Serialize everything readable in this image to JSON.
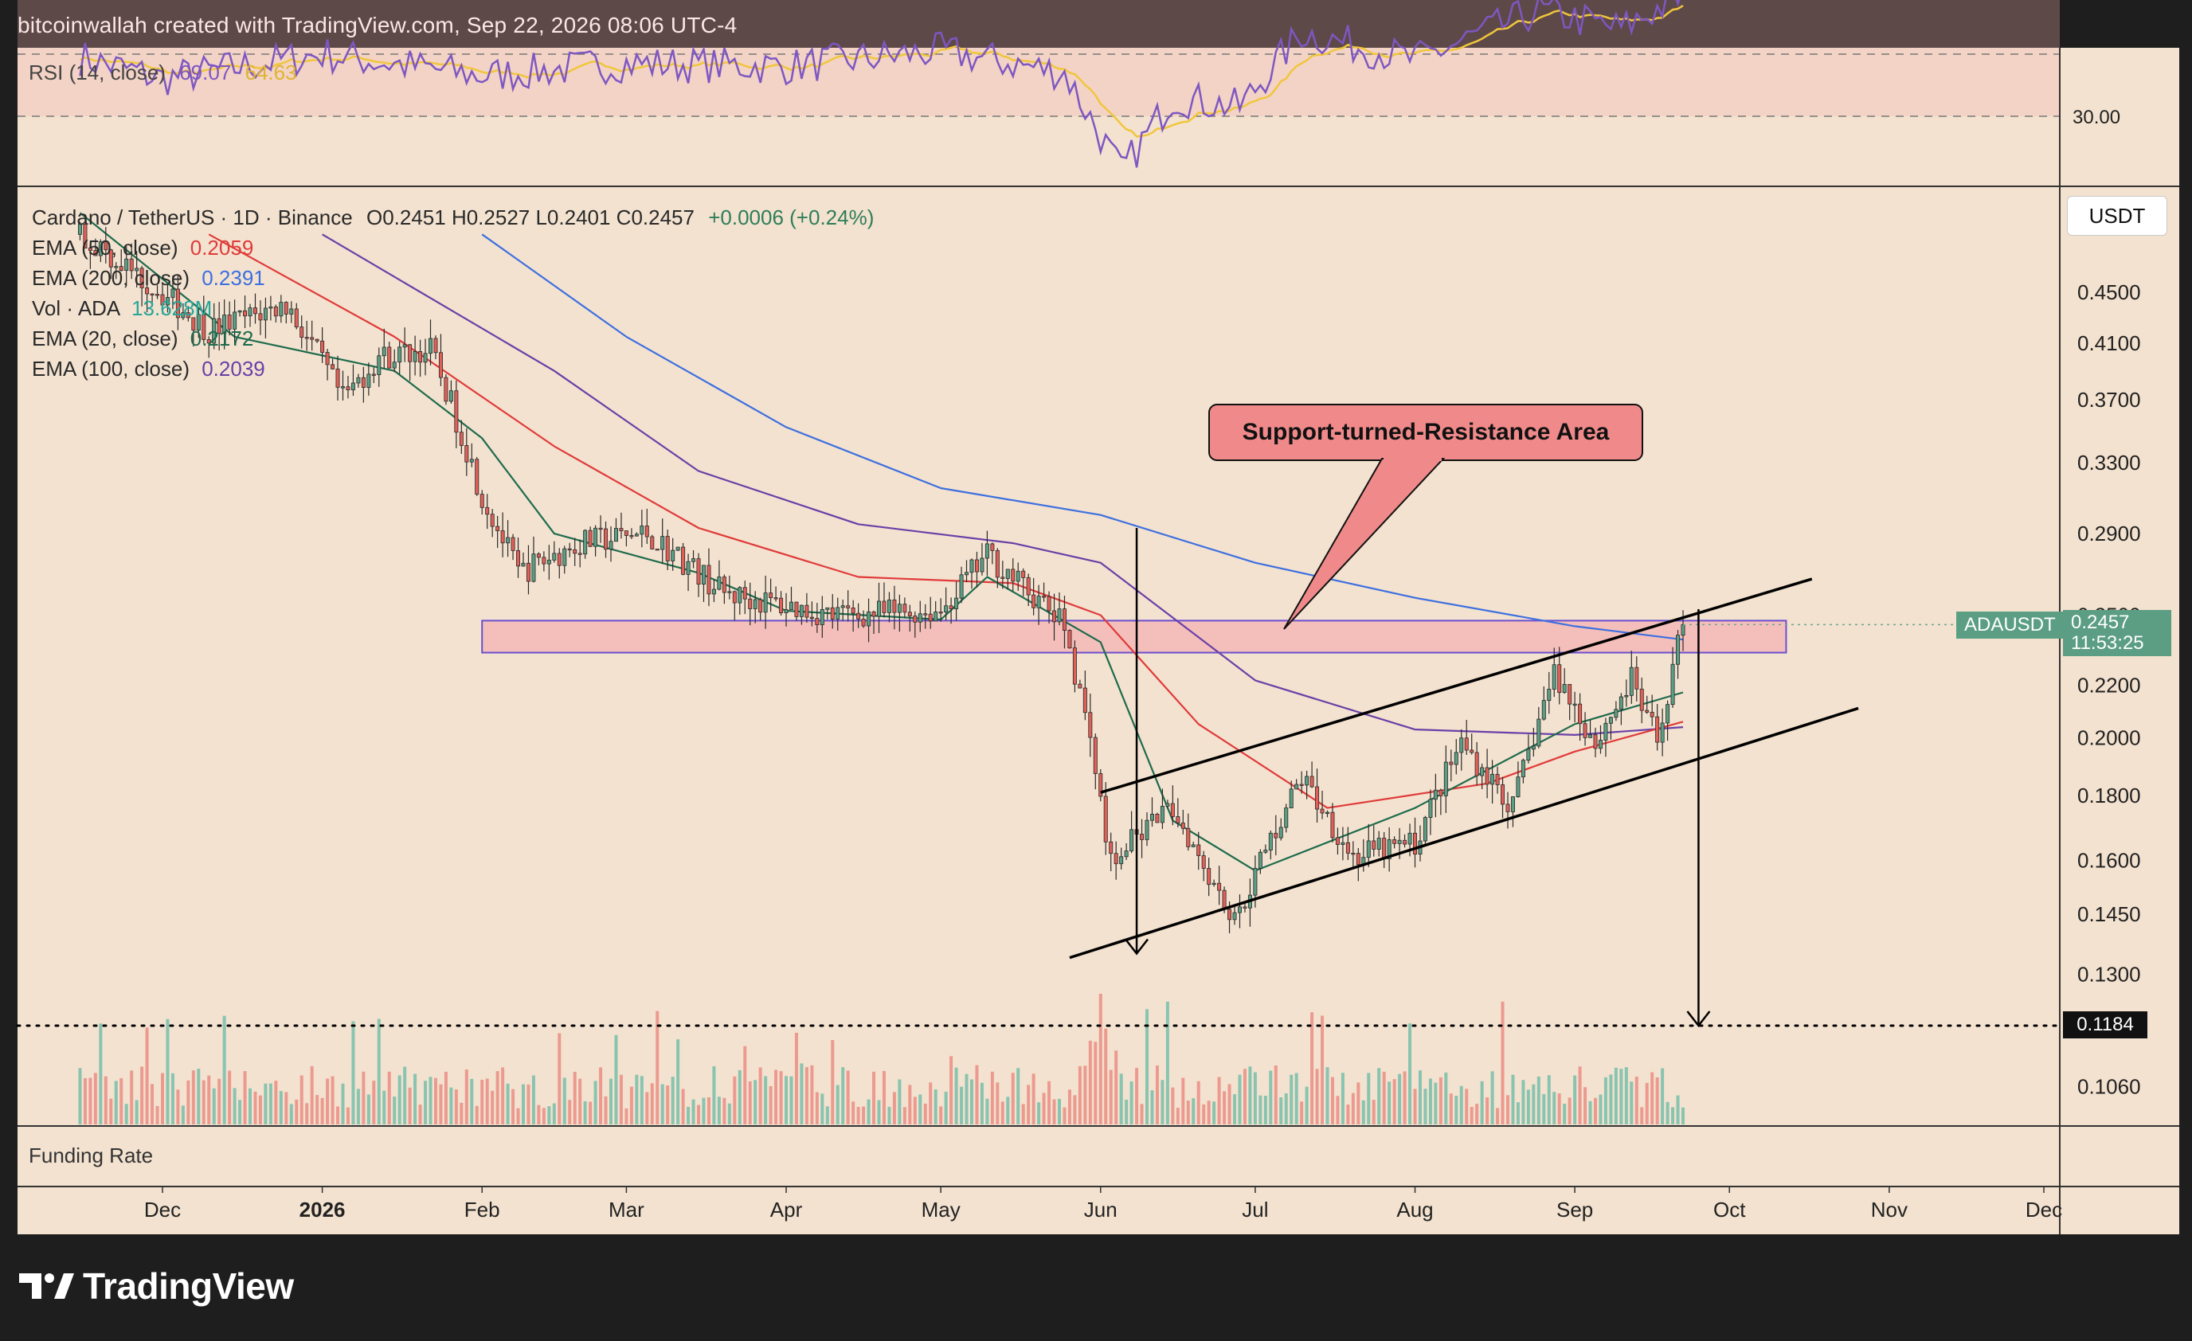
{
  "header": {
    "text": "bitcoinwallah created with TradingView.com, Sep 22, 2026 08:06 UTC-4"
  },
  "brand": {
    "name": "TradingView"
  },
  "rsi_panel": {
    "label": "RSI (14, close)",
    "value": "69.07",
    "ma_value": "64.63",
    "level_label": "30.00",
    "colors": {
      "rsi": "#7e57c2",
      "ma": "#f0c63c",
      "band": "#d9b5b8"
    }
  },
  "legend": {
    "symbol_prefix": "Cardano / TetherUS · 1D · Binance",
    "ohlc": "O0.2451  H0.2527  L0.2401  C0.2457",
    "change": "+0.0006 (+0.24%)",
    "ema50_label": "EMA (50, close)",
    "ema50_value": "0.2059",
    "ema200_label": "EMA (200, close)",
    "ema200_value": "0.2391",
    "vol_label": "Vol · ADA",
    "vol_value": "13.628M",
    "ema20_label": "EMA (20, close)",
    "ema20_value": "0.2172",
    "ema100_label": "EMA (100, close)",
    "ema100_value": "0.2039"
  },
  "currency_button": {
    "label": "USDT"
  },
  "annotation": {
    "text": "Support-turned-Resistance Area"
  },
  "last_price": {
    "ticker": "ADAUSDT",
    "price": "0.2457",
    "countdown": "11:53:25"
  },
  "target_level": {
    "label": "0.1184"
  },
  "funding_pane": {
    "label": "Funding Rate"
  },
  "colors": {
    "background": "#f3e2cf",
    "up": "#5b9e84",
    "down": "#e06058",
    "ema20": "#1e6b4d",
    "ema50": "#e03b3b",
    "ema100": "#6a3fa8",
    "ema200": "#3d6fe0",
    "zone_fill": "#f4b0b0",
    "zone_border": "#6a4fd0",
    "callout_fill": "#f08a8a"
  },
  "chart_data": {
    "type": "candlestick",
    "y_scale": "log",
    "price_ticks": [
      "0.4500",
      "0.4100",
      "0.3700",
      "0.3300",
      "0.2900",
      "0.2500",
      "0.2200",
      "0.2000",
      "0.1800",
      "0.1600",
      "0.1450",
      "0.1300",
      "0.1060"
    ],
    "x_ticks": [
      "Dec",
      "2026",
      "Feb",
      "Mar",
      "Apr",
      "May",
      "Jun",
      "Jul",
      "Aug",
      "Sep",
      "Oct",
      "Nov",
      "Dec"
    ],
    "resistance_zone": [
      0.2335,
      0.2475
    ],
    "channel": {
      "upper": [
        {
          "date": "2026-06-01",
          "price": 0.181
        },
        {
          "date": "2026-10-17",
          "price": 0.267
        }
      ],
      "lower": [
        {
          "date": "2026-05-26",
          "price": 0.134
        },
        {
          "date": "2026-10-26",
          "price": 0.211
        }
      ]
    },
    "measured_move": {
      "pole_top": 0.293,
      "pole_bottom": 0.135,
      "projection_from": 0.2527,
      "projection_target": 0.1184
    },
    "ema_series": {
      "ema20": [
        {
          "date": "2025-11-15",
          "price": 0.52
        },
        {
          "date": "2025-12-15",
          "price": 0.415
        },
        {
          "date": "2026-01-15",
          "price": 0.39
        },
        {
          "date": "2026-02-01",
          "price": 0.345
        },
        {
          "date": "2026-02-15",
          "price": 0.29
        },
        {
          "date": "2026-03-15",
          "price": 0.27
        },
        {
          "date": "2026-04-01",
          "price": 0.252
        },
        {
          "date": "2026-05-01",
          "price": 0.248
        },
        {
          "date": "2026-05-10",
          "price": 0.268
        },
        {
          "date": "2026-06-01",
          "price": 0.238
        },
        {
          "date": "2026-06-15",
          "price": 0.172
        },
        {
          "date": "2026-07-01",
          "price": 0.157
        },
        {
          "date": "2026-08-01",
          "price": 0.176
        },
        {
          "date": "2026-09-01",
          "price": 0.205
        },
        {
          "date": "2026-09-22",
          "price": 0.2172
        }
      ],
      "ema50": [
        {
          "date": "2025-12-10",
          "price": 0.5
        },
        {
          "date": "2026-01-15",
          "price": 0.415
        },
        {
          "date": "2026-02-15",
          "price": 0.34
        },
        {
          "date": "2026-03-15",
          "price": 0.293
        },
        {
          "date": "2026-04-15",
          "price": 0.268
        },
        {
          "date": "2026-05-15",
          "price": 0.265
        },
        {
          "date": "2026-06-01",
          "price": 0.25
        },
        {
          "date": "2026-06-20",
          "price": 0.205
        },
        {
          "date": "2026-07-15",
          "price": 0.176
        },
        {
          "date": "2026-08-15",
          "price": 0.184
        },
        {
          "date": "2026-09-01",
          "price": 0.195
        },
        {
          "date": "2026-09-22",
          "price": 0.2059
        }
      ],
      "ema100": [
        {
          "date": "2026-01-01",
          "price": 0.5
        },
        {
          "date": "2026-02-15",
          "price": 0.39
        },
        {
          "date": "2026-03-15",
          "price": 0.325
        },
        {
          "date": "2026-04-15",
          "price": 0.295
        },
        {
          "date": "2026-05-15",
          "price": 0.285
        },
        {
          "date": "2026-06-01",
          "price": 0.275
        },
        {
          "date": "2026-07-01",
          "price": 0.222
        },
        {
          "date": "2026-08-01",
          "price": 0.203
        },
        {
          "date": "2026-09-01",
          "price": 0.201
        },
        {
          "date": "2026-09-22",
          "price": 0.2039
        }
      ],
      "ema200": [
        {
          "date": "2026-02-01",
          "price": 0.5
        },
        {
          "date": "2026-03-01",
          "price": 0.415
        },
        {
          "date": "2026-04-01",
          "price": 0.352
        },
        {
          "date": "2026-05-01",
          "price": 0.315
        },
        {
          "date": "2026-06-01",
          "price": 0.3
        },
        {
          "date": "2026-07-01",
          "price": 0.275
        },
        {
          "date": "2026-08-01",
          "price": 0.258
        },
        {
          "date": "2026-09-01",
          "price": 0.245
        },
        {
          "date": "2026-09-22",
          "price": 0.2391
        }
      ]
    },
    "price_path": [
      {
        "date": "2025-11-15",
        "price": 0.5
      },
      {
        "date": "2025-12-10",
        "price": 0.42
      },
      {
        "date": "2025-12-25",
        "price": 0.44
      },
      {
        "date": "2026-01-05",
        "price": 0.37
      },
      {
        "date": "2026-01-12",
        "price": 0.4
      },
      {
        "date": "2026-01-22",
        "price": 0.405
      },
      {
        "date": "2026-02-01",
        "price": 0.31
      },
      {
        "date": "2026-02-08",
        "price": 0.27
      },
      {
        "date": "2026-02-20",
        "price": 0.285
      },
      {
        "date": "2026-03-05",
        "price": 0.29
      },
      {
        "date": "2026-03-20",
        "price": 0.26
      },
      {
        "date": "2026-04-10",
        "price": 0.25
      },
      {
        "date": "2026-05-01",
        "price": 0.252
      },
      {
        "date": "2026-05-10",
        "price": 0.279
      },
      {
        "date": "2026-05-25",
        "price": 0.245
      },
      {
        "date": "2026-06-03",
        "price": 0.16
      },
      {
        "date": "2026-06-15",
        "price": 0.176
      },
      {
        "date": "2026-06-27",
        "price": 0.143
      },
      {
        "date": "2026-07-10",
        "price": 0.186
      },
      {
        "date": "2026-07-20",
        "price": 0.161
      },
      {
        "date": "2026-08-01",
        "price": 0.165
      },
      {
        "date": "2026-08-10",
        "price": 0.198
      },
      {
        "date": "2026-08-20",
        "price": 0.176
      },
      {
        "date": "2026-08-28",
        "price": 0.225
      },
      {
        "date": "2026-09-05",
        "price": 0.198
      },
      {
        "date": "2026-09-12",
        "price": 0.222
      },
      {
        "date": "2026-09-17",
        "price": 0.198
      },
      {
        "date": "2026-09-22",
        "price": 0.2457
      }
    ],
    "rsi_path": [
      {
        "date": "2025-11-15",
        "value": 49
      },
      {
        "date": "2025-12-01",
        "value": 42
      },
      {
        "date": "2026-01-01",
        "value": 50
      },
      {
        "date": "2026-02-01",
        "value": 43
      },
      {
        "date": "2026-03-01",
        "value": 47
      },
      {
        "date": "2026-04-01",
        "value": 46
      },
      {
        "date": "2026-05-01",
        "value": 51
      },
      {
        "date": "2026-05-25",
        "value": 44
      },
      {
        "date": "2026-06-05",
        "value": 12
      },
      {
        "date": "2026-06-15",
        "value": 36
      },
      {
        "date": "2026-06-28",
        "value": 33
      },
      {
        "date": "2026-07-10",
        "value": 57
      },
      {
        "date": "2026-08-01",
        "value": 48
      },
      {
        "date": "2026-08-25",
        "value": 64
      },
      {
        "date": "2026-09-10",
        "value": 58
      },
      {
        "date": "2026-09-22",
        "value": 69.07
      }
    ],
    "rsi_levels": [
      70,
      50,
      30
    ]
  }
}
